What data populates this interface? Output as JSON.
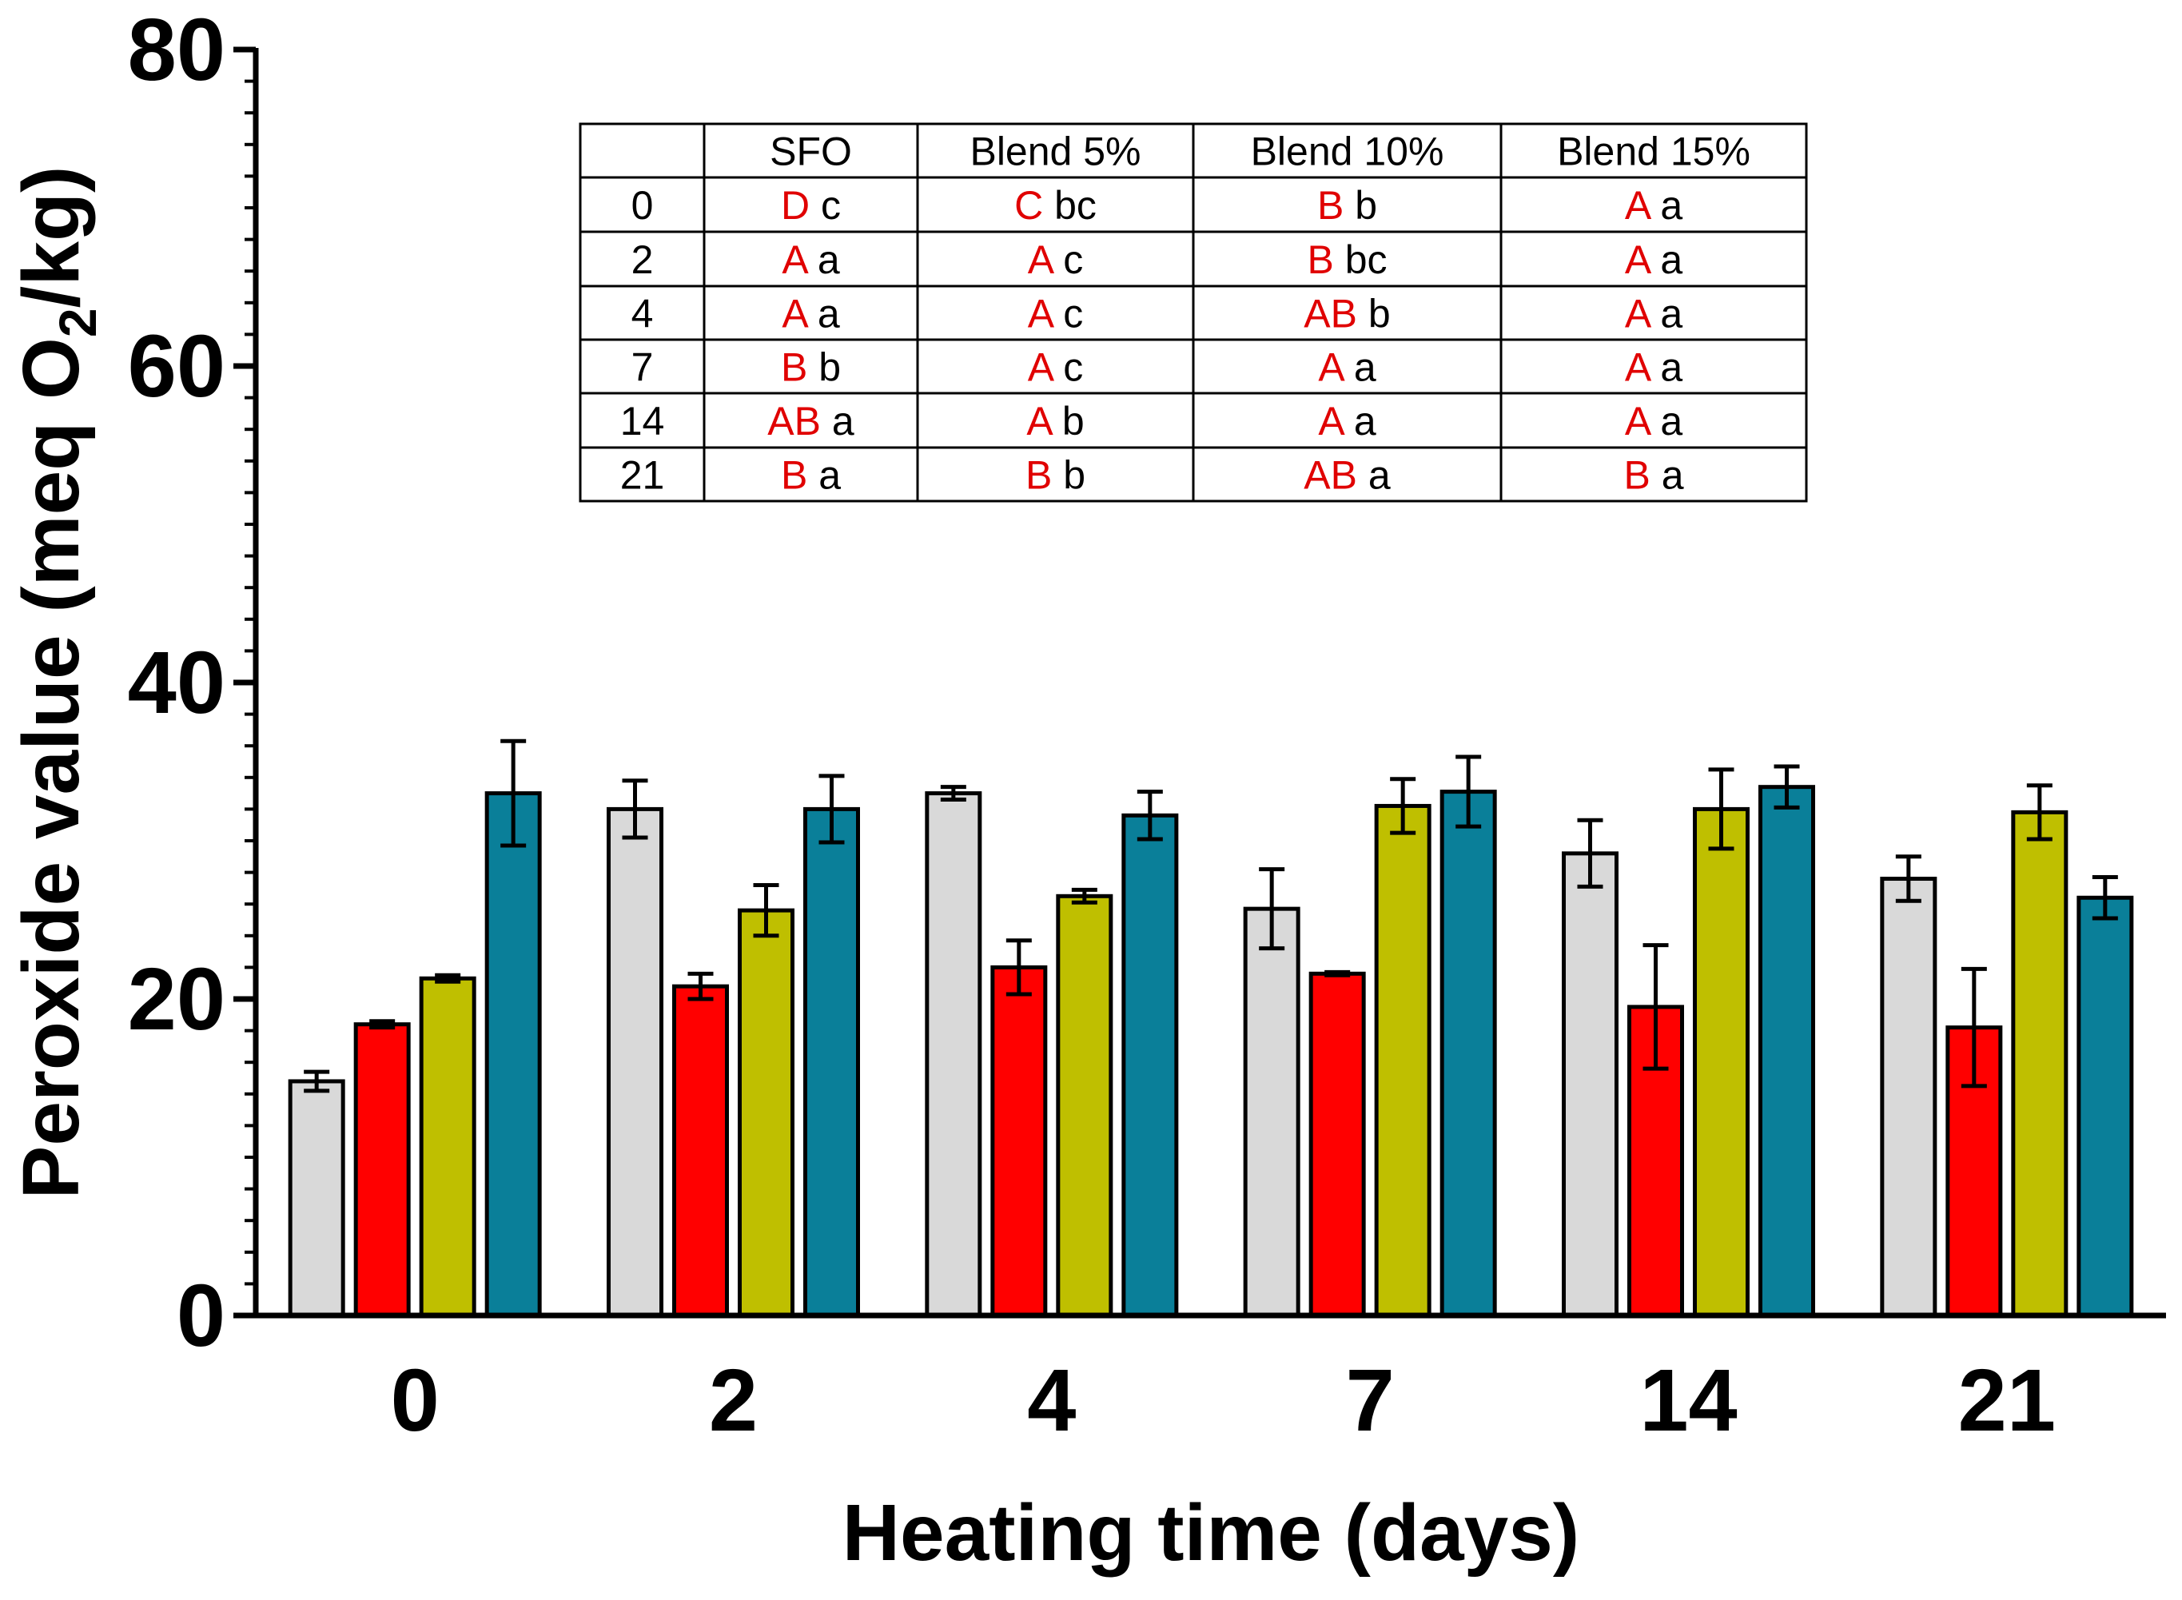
{
  "chart_data": {
    "type": "bar",
    "title": "",
    "xlabel": "Heating time (days)",
    "ylabel_parts": [
      "Peroxide value (meq O",
      "2",
      "/kg)"
    ],
    "ylim": [
      0,
      80
    ],
    "yticks": [
      0,
      20,
      40,
      60,
      80
    ],
    "minor_tick_step": 2,
    "categories": [
      "0",
      "2",
      "4",
      "7",
      "14",
      "21"
    ],
    "series": [
      {
        "name": "SFO",
        "color": "#d9d9d9",
        "values": [
          14.8,
          32.0,
          33.0,
          25.7,
          29.2,
          27.6
        ],
        "errors": [
          0.6,
          1.8,
          0.4,
          2.5,
          2.1,
          1.4
        ]
      },
      {
        "name": "Blend 5%",
        "color": "#ff0000",
        "values": [
          18.4,
          20.8,
          22.0,
          21.6,
          19.5,
          18.2
        ],
        "errors": [
          0.2,
          0.8,
          1.7,
          0.1,
          3.9,
          3.7
        ]
      },
      {
        "name": "Blend 10%",
        "color": "#bfbf00",
        "values": [
          21.3,
          25.6,
          26.5,
          32.2,
          32.0,
          31.8
        ],
        "errors": [
          0.2,
          1.6,
          0.4,
          1.7,
          2.5,
          1.7
        ]
      },
      {
        "name": "Blend 15%",
        "color": "#0a7f99",
        "values": [
          33.0,
          32.0,
          31.6,
          33.1,
          33.4,
          26.4
        ],
        "errors": [
          3.3,
          2.1,
          1.5,
          2.2,
          1.3,
          1.3
        ]
      }
    ]
  },
  "stat_table": {
    "headers": [
      "",
      "SFO",
      "Blend 5%",
      "Blend 10%",
      "Blend 15%"
    ],
    "rows": [
      {
        "day": "0",
        "cells": [
          {
            "upper": "D",
            "lower": "c"
          },
          {
            "upper": "C",
            "lower": "bc"
          },
          {
            "upper": "B",
            "lower": "b"
          },
          {
            "upper": "A",
            "lower": "a"
          }
        ]
      },
      {
        "day": "2",
        "cells": [
          {
            "upper": "A",
            "lower": "a"
          },
          {
            "upper": "A",
            "lower": "c"
          },
          {
            "upper": "B",
            "lower": "bc"
          },
          {
            "upper": "A",
            "lower": "a"
          }
        ]
      },
      {
        "day": "4",
        "cells": [
          {
            "upper": "A",
            "lower": "a"
          },
          {
            "upper": "A",
            "lower": "c"
          },
          {
            "upper": "AB",
            "lower": "b"
          },
          {
            "upper": "A",
            "lower": "a"
          }
        ]
      },
      {
        "day": "7",
        "cells": [
          {
            "upper": "B",
            "lower": "b"
          },
          {
            "upper": "A",
            "lower": "c"
          },
          {
            "upper": "A",
            "lower": "a"
          },
          {
            "upper": "A",
            "lower": "a"
          }
        ]
      },
      {
        "day": "14",
        "cells": [
          {
            "upper": "AB",
            "lower": "a"
          },
          {
            "upper": "A",
            "lower": "b"
          },
          {
            "upper": "A",
            "lower": "a"
          },
          {
            "upper": "A",
            "lower": "a"
          }
        ]
      },
      {
        "day": "21",
        "cells": [
          {
            "upper": "B",
            "lower": "a"
          },
          {
            "upper": "B",
            "lower": "b"
          },
          {
            "upper": "AB",
            "lower": "a"
          },
          {
            "upper": "B",
            "lower": "a"
          }
        ]
      }
    ]
  }
}
